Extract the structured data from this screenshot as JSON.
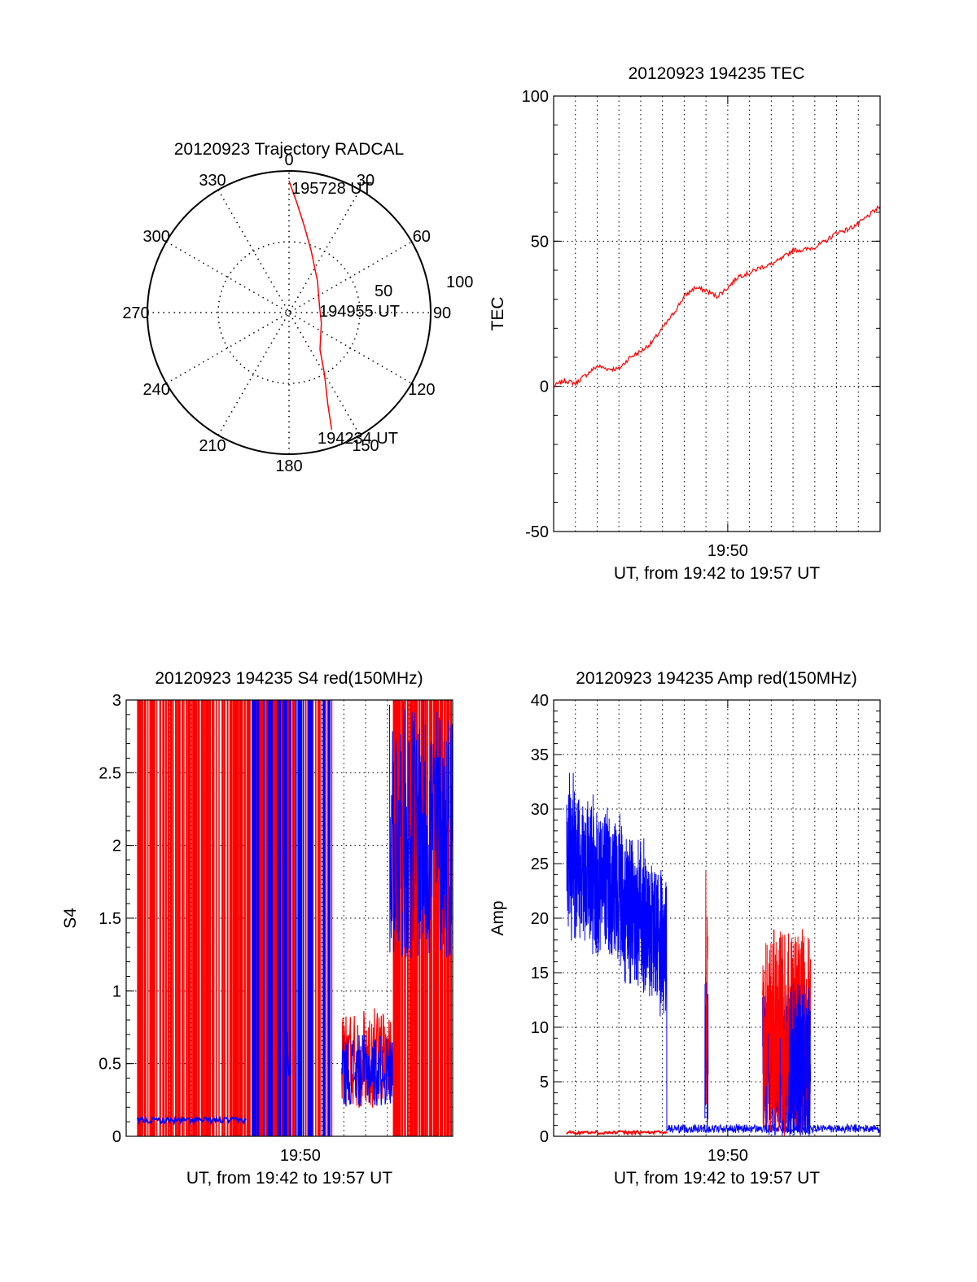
{
  "colors": {
    "red": "#ff0000",
    "blue": "#0000ff",
    "axis": "#000000",
    "grid": "#000000"
  },
  "chart_data": [
    {
      "id": "trajectory",
      "type": "polar",
      "title": "20120923 Trajectory RADCAL",
      "azimuth_labels": [
        "0",
        "30",
        "60",
        "90",
        "120",
        "150",
        "180",
        "210",
        "240",
        "270",
        "300",
        "330"
      ],
      "radial_ticks": [
        "50",
        "100"
      ],
      "radial_range": [
        0,
        100
      ],
      "grid": "dotted",
      "series": [
        {
          "color": "red",
          "points": [
            {
              "az": 0,
              "r": 93
            },
            {
              "az": 4,
              "r": 78
            },
            {
              "az": 10,
              "r": 62
            },
            {
              "az": 20,
              "r": 46
            },
            {
              "az": 42,
              "r": 30
            },
            {
              "az": 78,
              "r": 22
            },
            {
              "az": 108,
              "r": 24
            },
            {
              "az": 140,
              "r": 34
            },
            {
              "az": 150,
              "r": 50
            },
            {
              "az": 157,
              "r": 70
            },
            {
              "az": 160,
              "r": 88
            }
          ]
        }
      ],
      "annotations": [
        "195728 UT",
        "194955 UT",
        "194234 UT"
      ]
    },
    {
      "id": "tec",
      "type": "line",
      "title": "20120923 194235 TEC",
      "ylabel": "TEC",
      "xlabel": "UT, from 19:42 to 19:57 UT",
      "x_tick_label": "19:50",
      "ylim": [
        -50,
        100
      ],
      "y_ticks": [
        "100",
        "50",
        "0",
        "-50"
      ],
      "grid": "dotted",
      "series": [
        {
          "color": "red",
          "x": [
            0,
            0.5,
            1,
            1.5,
            2,
            2.5,
            3,
            3.5,
            4,
            4.5,
            5,
            5.5,
            6,
            6.5,
            7,
            7.5,
            8,
            8.5,
            9,
            9.5,
            10,
            10.5,
            11,
            11.5,
            12,
            12.5,
            13,
            13.5,
            14,
            14.5,
            15
          ],
          "y": [
            0,
            2,
            1,
            4,
            7,
            6,
            6,
            10,
            12,
            15,
            20,
            25,
            31,
            34,
            33,
            31,
            34,
            38,
            39,
            41,
            42,
            44,
            47,
            47,
            48,
            50,
            53,
            54,
            56,
            59,
            62
          ]
        }
      ]
    },
    {
      "id": "s4",
      "type": "line",
      "title": "20120923 194235 S4 red(150MHz)",
      "ylabel": "S4",
      "xlabel": "UT, from 19:42 to 19:57 UT",
      "x_tick_label": "19:50",
      "ylim": [
        0,
        3
      ],
      "y_ticks": [
        "3",
        "2.5",
        "2",
        "1.5",
        "1",
        "0.5",
        "0"
      ],
      "grid": "dotted",
      "series": [
        {
          "color": "red",
          "note": "dense spikes 0–3 over most of the interval; ~0.3–0.9 between about 19:52 and 19:54"
        },
        {
          "color": "blue",
          "note": "~0.1 until 19:47, dense spikes to 3 around 19:47–19:51, ~0.2–0.8 around 19:52–19:54, 1.2–3 after 19:54"
        }
      ]
    },
    {
      "id": "amp",
      "type": "line",
      "title": "20120923 194235 Amp red(150MHz)",
      "ylabel": "Amp",
      "xlabel": "UT, from 19:42 to 19:57 UT",
      "x_tick_label": "19:50",
      "ylim": [
        0,
        40
      ],
      "y_ticks": [
        "40",
        "35",
        "30",
        "25",
        "20",
        "15",
        "10",
        "5",
        "0"
      ],
      "grid": "dotted",
      "series": [
        {
          "color": "red",
          "note": "near 0 except spike to ~25 near 19:49 and bursts to ~19 around 19:52–19:54"
        },
        {
          "color": "blue",
          "note": "noisy band declining from ~28 to ~17 between 19:42 and 19:47, then near 0 with bursts to ~15 near 19:49 and ~15 around 19:52–19:54"
        }
      ]
    }
  ]
}
